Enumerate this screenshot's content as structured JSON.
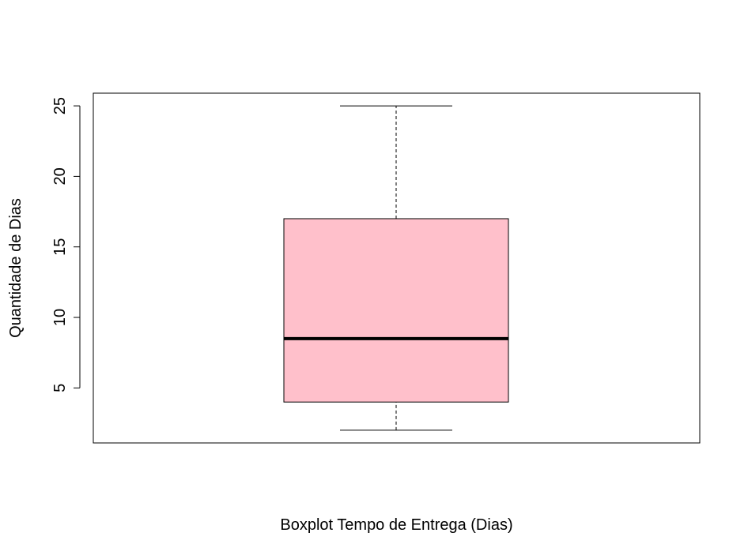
{
  "chart_data": {
    "type": "boxplot",
    "xlabel": "Boxplot Tempo de Entrega (Dias)",
    "ylabel": "Quantidade de Dias",
    "ylim": [
      1.1,
      25.9
    ],
    "yticks": [
      5,
      10,
      15,
      20,
      25
    ],
    "ytick_labels": [
      "5",
      "10",
      "15",
      "20",
      "25"
    ],
    "box": {
      "min": 2,
      "q1": 4,
      "median": 8.5,
      "q3": 17,
      "max": 25
    },
    "box_color": "#FFC0CB",
    "grid": false,
    "legend": "none"
  }
}
